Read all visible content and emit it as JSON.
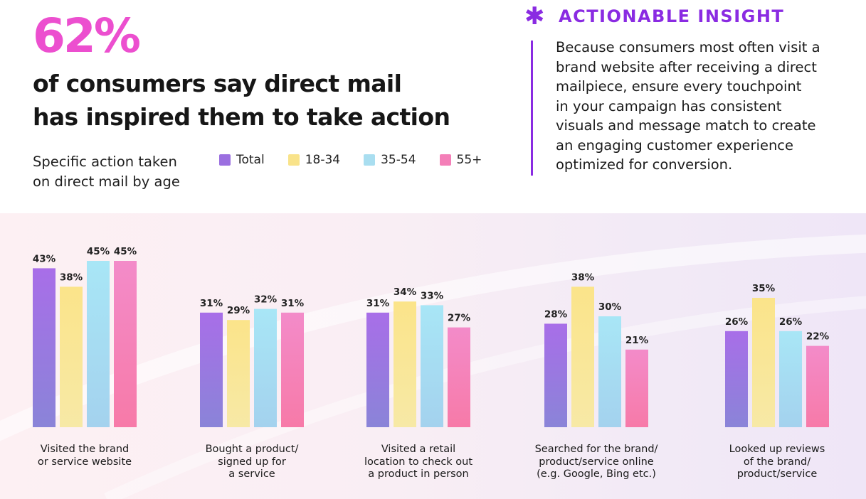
{
  "headline": {
    "stat": "62%",
    "line1": "of consumers say direct mail",
    "line2": "has inspired them to take action"
  },
  "subhead": {
    "line1": "Specific action taken",
    "line2": "on direct mail by age"
  },
  "insight": {
    "icon": "asterisk-icon",
    "title": "ACTIONABLE INSIGHT",
    "lines": [
      "Because consumers most often visit a",
      "brand website after receiving a direct",
      "mailpiece, ensure every touchpoint",
      "in your campaign has consistent",
      "visuals and message match to create",
      "an engaging customer experience",
      "optimized for conversion."
    ]
  },
  "colors": {
    "accent_pink": "#ec4fcf",
    "accent_purple": "#8a2be2",
    "total": "#9b6fe0",
    "age_18_34": "#f9e38a",
    "age_35_54": "#a9def0",
    "age_55_plus": "#f47fb8"
  },
  "chart_data": {
    "type": "bar",
    "categories": [
      [
        "Visited the brand",
        "or service website"
      ],
      [
        "Bought a product/",
        "signed up for",
        "a service"
      ],
      [
        "Visited a retail",
        "location to check out",
        "a product in person"
      ],
      [
        "Searched for the brand/",
        "product/service online",
        "(e.g. Google, Bing etc.)"
      ],
      [
        "Looked up reviews",
        "of the brand/",
        "product/service"
      ]
    ],
    "series": [
      {
        "name": "Total",
        "values": [
          43,
          31,
          31,
          28,
          26
        ],
        "labels": [
          "43%",
          "31%",
          "31%",
          "28%",
          "26%"
        ]
      },
      {
        "name": "18-34",
        "values": [
          38,
          29,
          34,
          38,
          35
        ],
        "labels": [
          "38%",
          "29%",
          "34%",
          "38%",
          "35%"
        ]
      },
      {
        "name": "35-54",
        "values": [
          45,
          32,
          33,
          30,
          26
        ],
        "labels": [
          "45%",
          "32%",
          "33%",
          "30%",
          "26%"
        ]
      },
      {
        "name": "55+",
        "values": [
          45,
          31,
          27,
          21,
          22
        ],
        "labels": [
          "45%",
          "31%",
          "27%",
          "21%",
          "22%"
        ]
      }
    ],
    "unit": "%",
    "legend_position": "top",
    "grid": false
  }
}
